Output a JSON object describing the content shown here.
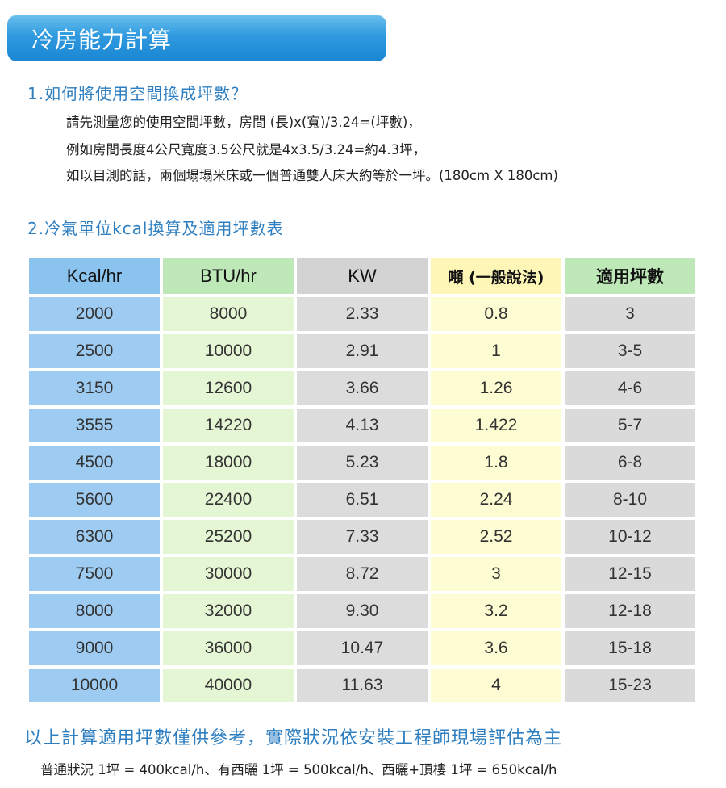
{
  "title": "冷房能力計算",
  "section1": {
    "heading": "1.如何將使用空間換成坪數？",
    "lines": [
      "請先測量您的使用空間坪數，房間 (長)x(寬)/3.24=(坪數)，",
      "例如房間長度4公尺寬度3.5公尺就是4x3.5/3.24=約4.3坪，",
      "如以目測的話，兩個塌塌米床或一個普通雙人床大約等於一坪。(180cm X 180cm)"
    ]
  },
  "section2": {
    "heading": "2.冷氣單位kcal換算及適用坪數表"
  },
  "table": {
    "headers": [
      "Kcal/hr",
      "BTU/hr",
      "KW",
      "噸 (一般說法)",
      "適用坪數"
    ],
    "rows": [
      [
        "2000",
        "8000",
        "2.33",
        "0.8",
        "3"
      ],
      [
        "2500",
        "10000",
        "2.91",
        "1",
        "3-5"
      ],
      [
        "3150",
        "12600",
        "3.66",
        "1.26",
        "4-6"
      ],
      [
        "3555",
        "14220",
        "4.13",
        "1.422",
        "5-7"
      ],
      [
        "4500",
        "18000",
        "5.23",
        "1.8",
        "6-8"
      ],
      [
        "5600",
        "22400",
        "6.51",
        "2.24",
        "8-10"
      ],
      [
        "6300",
        "25200",
        "7.33",
        "2.52",
        "10-12"
      ],
      [
        "7500",
        "30000",
        "8.72",
        "3",
        "12-15"
      ],
      [
        "8000",
        "32000",
        "9.30",
        "3.2",
        "12-18"
      ],
      [
        "9000",
        "36000",
        "10.47",
        "3.6",
        "15-18"
      ],
      [
        "10000",
        "40000",
        "11.63",
        "4",
        "15-23"
      ]
    ]
  },
  "footer": {
    "title": "以上計算適用坪數僅供參考，實際狀況依安裝工程師現場評估為主",
    "note": "普通狀況 1坪 = 400kcal/h、有西曬 1坪 = 500kcal/h、西曬+頂樓 1坪 = 650kcal/h"
  },
  "colors": {
    "banner": "#2f9adf",
    "heading_text": "#2f7fc0",
    "col_kcal": "#9dcbf1",
    "col_btu": "#e5f6d4",
    "col_kw": "#dcdcdc",
    "col_ton": "#fefcd2",
    "col_ping": "#dadada"
  }
}
